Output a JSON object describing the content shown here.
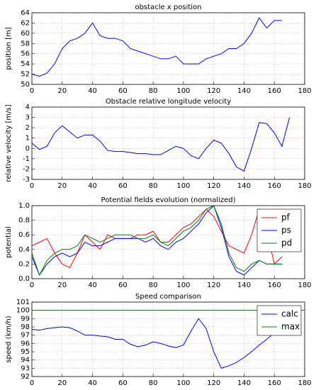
{
  "chart_data": [
    {
      "type": "line",
      "title": "obstacle x position",
      "ylabel": "position [m]",
      "x": [
        0,
        5,
        10,
        15,
        20,
        25,
        30,
        35,
        40,
        45,
        50,
        55,
        60,
        65,
        70,
        75,
        80,
        85,
        90,
        95,
        100,
        105,
        110,
        115,
        120,
        125,
        130,
        135,
        140,
        145,
        150,
        155,
        160,
        165
      ],
      "series": [
        {
          "name": "position",
          "color": "#0000ff",
          "values": [
            52,
            51.6,
            52.2,
            54,
            57,
            58.5,
            59,
            60,
            62,
            59.5,
            59,
            59,
            58.5,
            57,
            56.5,
            56,
            55.5,
            55,
            55,
            55.5,
            54,
            54,
            54,
            55,
            55.5,
            56,
            57,
            57,
            58,
            60,
            63,
            61,
            62.5,
            62.5
          ]
        }
      ],
      "xlim": [
        0,
        180
      ],
      "ylim": [
        50,
        64
      ],
      "xticks": [
        0,
        20,
        40,
        60,
        80,
        100,
        120,
        140,
        160,
        180
      ],
      "yticks": [
        50,
        52,
        54,
        56,
        58,
        60,
        62,
        64
      ],
      "grid": true
    },
    {
      "type": "line",
      "title": "Obstacle relative longitude velocity",
      "ylabel": "relative velocity [m/s]",
      "x": [
        0,
        5,
        10,
        15,
        20,
        25,
        30,
        35,
        40,
        45,
        50,
        55,
        60,
        65,
        70,
        75,
        80,
        85,
        90,
        95,
        100,
        105,
        110,
        115,
        120,
        125,
        130,
        135,
        140,
        145,
        150,
        155,
        160,
        165,
        170
      ],
      "series": [
        {
          "name": "velocity",
          "color": "#0000ff",
          "values": [
            0.5,
            -0.1,
            0.2,
            1.5,
            2.2,
            1.6,
            1.0,
            1.3,
            1.3,
            0.7,
            -0.2,
            -0.3,
            -0.3,
            -0.4,
            -0.5,
            -0.5,
            -0.6,
            -0.6,
            -0.2,
            0.2,
            0,
            -0.7,
            -1.0,
            0,
            0.8,
            0.5,
            -0.5,
            -1.8,
            -2.2,
            0,
            2.5,
            2.4,
            1.5,
            0.2,
            3.0
          ]
        }
      ],
      "xlim": [
        0,
        180
      ],
      "ylim": [
        -3,
        4
      ],
      "xticks": [
        0,
        20,
        40,
        60,
        80,
        100,
        120,
        140,
        160,
        180
      ],
      "yticks": [
        -3,
        -2,
        -1,
        0,
        1,
        2,
        3,
        4
      ],
      "grid": true
    },
    {
      "type": "line",
      "title": "Potential fields evolution (normalized)",
      "ylabel": "potential",
      "x": [
        0,
        5,
        10,
        15,
        20,
        25,
        30,
        35,
        40,
        45,
        50,
        55,
        60,
        65,
        70,
        75,
        80,
        85,
        90,
        95,
        100,
        105,
        110,
        115,
        120,
        125,
        130,
        135,
        140,
        145,
        150,
        155,
        160,
        165
      ],
      "series": [
        {
          "name": "pf",
          "color": "#ff0000",
          "values": [
            0.45,
            0.5,
            0.55,
            0.35,
            0.2,
            0.15,
            0.35,
            0.6,
            0.5,
            0.4,
            0.6,
            0.55,
            0.55,
            0.55,
            0.6,
            0.6,
            0.65,
            0.5,
            0.5,
            0.6,
            0.7,
            0.75,
            0.85,
            0.95,
            0.85,
            0.65,
            0.45,
            0.4,
            0.35,
            0.6,
            0.95,
            0.65,
            0.2,
            0.3
          ]
        },
        {
          "name": "ps",
          "color": "#0000ff",
          "values": [
            0.3,
            0.05,
            0.2,
            0.3,
            0.35,
            0.3,
            0.35,
            0.5,
            0.45,
            0.45,
            0.5,
            0.55,
            0.55,
            0.55,
            0.55,
            0.5,
            0.55,
            0.45,
            0.4,
            0.5,
            0.55,
            0.65,
            0.75,
            0.9,
            1.0,
            0.7,
            0.3,
            0.1,
            0.05,
            0.15,
            0.25,
            0.2,
            0.2,
            0.2
          ]
        },
        {
          "name": "pd",
          "color": "#008000",
          "values": [
            0.35,
            0.05,
            0.25,
            0.35,
            0.4,
            0.4,
            0.45,
            0.6,
            0.55,
            0.5,
            0.55,
            0.6,
            0.6,
            0.6,
            0.55,
            0.55,
            0.6,
            0.5,
            0.45,
            0.55,
            0.65,
            0.7,
            0.8,
            0.95,
            1.0,
            0.75,
            0.35,
            0.15,
            0.1,
            0.2,
            0.25,
            0.2,
            0.2,
            0.2
          ]
        }
      ],
      "xlim": [
        0,
        180
      ],
      "ylim": [
        0,
        1
      ],
      "xticks": [
        0,
        20,
        40,
        60,
        80,
        100,
        120,
        140,
        160,
        180
      ],
      "yticks": [
        {
          "value": 0,
          "label": "0.0"
        },
        {
          "value": 0.2,
          "label": "0.2"
        },
        {
          "value": 0.4,
          "label": "0.4"
        },
        {
          "value": 0.6,
          "label": "0.6"
        },
        {
          "value": 0.8,
          "label": "0.8"
        },
        {
          "value": 1,
          "label": "1.0"
        }
      ],
      "grid": true,
      "legend": "upper right"
    },
    {
      "type": "line",
      "title": "Speed comparison",
      "ylabel": "speed (km/h)",
      "series": [
        {
          "name": "calc",
          "color": "#0000ff",
          "x": [
            0,
            5,
            10,
            15,
            20,
            25,
            30,
            35,
            40,
            45,
            50,
            55,
            60,
            65,
            70,
            75,
            80,
            85,
            90,
            95,
            100,
            105,
            110,
            115,
            120,
            125,
            130,
            135,
            140,
            145,
            150,
            155,
            160,
            165
          ],
          "values": [
            97.7,
            97.6,
            97.8,
            97.9,
            98.0,
            97.9,
            97.5,
            97.0,
            97.0,
            96.9,
            96.8,
            96.5,
            96.5,
            95.9,
            95.6,
            95.8,
            96.2,
            96.0,
            95.7,
            95.5,
            95.8,
            97.5,
            99.0,
            97.8,
            95.0,
            93.0,
            93.3,
            93.7,
            94.3,
            95.0,
            95.8,
            96.5,
            97.3,
            98.0
          ]
        },
        {
          "name": "max",
          "color": "#008000",
          "x": [
            0,
            180
          ],
          "values": [
            100,
            100
          ]
        }
      ],
      "xlim": [
        0,
        180
      ],
      "ylim": [
        92,
        101
      ],
      "xticks": [
        0,
        20,
        40,
        60,
        80,
        100,
        120,
        140,
        160,
        180
      ],
      "yticks": [
        92,
        93,
        94,
        95,
        96,
        97,
        98,
        99,
        100,
        101
      ],
      "grid": true,
      "legend": "upper right"
    }
  ]
}
